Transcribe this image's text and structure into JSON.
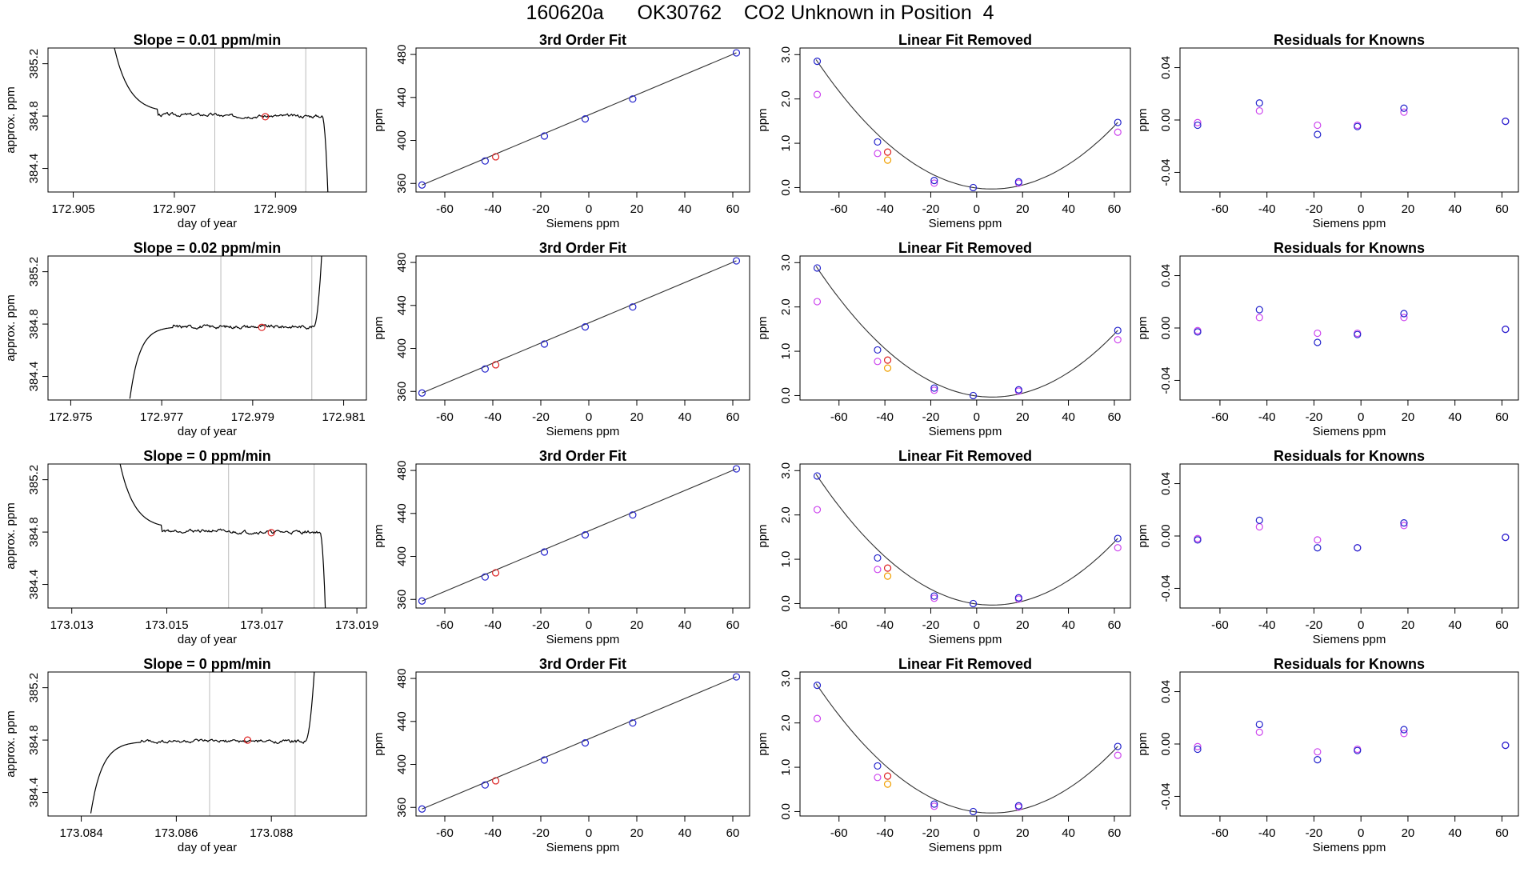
{
  "figure_title": "160620a      OK30762    CO2 Unknown in Position  4",
  "colors": {
    "trace": "#000000",
    "fit_line": "#333333",
    "gray_line": "#bbbbbb",
    "standard_point": "#2222cc",
    "unknown_point": "#dd2222",
    "residual_point": "#cc44ee",
    "orange_point": "#f0a000"
  },
  "chart_data": [
    {
      "type": "line",
      "row": 1,
      "column": 1,
      "title": "Slope =  0.01  ppm/min",
      "xlabel": "day of year",
      "ylabel": "approx. ppm",
      "xlim": [
        172.9045,
        172.9108
      ],
      "ylim": [
        384.22,
        385.32
      ],
      "xticks": [
        172.905,
        172.907,
        172.909
      ],
      "xtick_labels": [
        "172.905",
        "172.907",
        "172.909"
      ],
      "yticks": [
        384.4,
        384.8,
        385.2
      ],
      "ytick_labels": [
        "384.4",
        "384.8",
        "385.2"
      ],
      "window_markers": [
        172.9078,
        172.9096
      ],
      "marker_point": [
        172.9088,
        384.795
      ],
      "trace_shape": "drop_then_plateau_then_fall",
      "trace_start": 172.9057,
      "trace_end": 172.9101,
      "plateau_value": 384.8
    },
    {
      "type": "scatter",
      "row": 1,
      "column": 2,
      "title": "3rd Order Fit",
      "xlabel": "Siemens ppm",
      "ylabel": "ppm",
      "xlim": [
        -72,
        67
      ],
      "ylim": [
        352,
        486
      ],
      "xticks": [
        -60,
        -40,
        -20,
        0,
        20,
        40,
        60
      ],
      "xtick_labels": [
        "-60",
        "-40",
        "-20",
        "0",
        "20",
        "40",
        "60"
      ],
      "yticks": [
        360,
        400,
        440,
        480
      ],
      "ytick_labels": [
        "360",
        "400",
        "440",
        "480"
      ],
      "fit_line": [
        [
          -69.5,
          358.5
        ],
        [
          61.5,
          481.5
        ]
      ],
      "standards": {
        "x": [
          -69.5,
          -43.2,
          -18.5,
          -1.5,
          18.3,
          61.5
        ],
        "y": [
          358.5,
          380.9,
          404.1,
          420.0,
          438.6,
          481.5
        ]
      },
      "unknown": {
        "x": [
          -38.8
        ],
        "y": [
          384.8
        ]
      }
    },
    {
      "type": "scatter",
      "row": 1,
      "column": 3,
      "title": "Linear Fit Removed",
      "xlabel": "Siemens ppm",
      "ylabel": "ppm",
      "xlim": [
        -77,
        67
      ],
      "ylim": [
        -0.1,
        3.15
      ],
      "xticks": [
        -60,
        -40,
        -20,
        0,
        20,
        40,
        60
      ],
      "xtick_labels": [
        "-60",
        "-40",
        "-20",
        "0",
        "20",
        "40",
        "60"
      ],
      "yticks": [
        0,
        1,
        2,
        3
      ],
      "ytick_labels": [
        "0.0",
        "1.0",
        "2.0",
        "3.0"
      ],
      "curve_x_range": [
        -70,
        61.5
      ],
      "blue": {
        "x": [
          -69.5,
          -43.2,
          -18.5,
          -1.5,
          18.3,
          61.5
        ],
        "y": [
          2.85,
          1.03,
          0.16,
          0.0,
          0.13,
          1.47
        ]
      },
      "magenta": {
        "x": [
          -69.5,
          -43.2,
          -18.5,
          18.3,
          61.5
        ],
        "y": [
          2.1,
          0.77,
          0.1,
          0.1,
          1.25
        ]
      },
      "orange": {
        "x": [
          -38.8
        ],
        "y": [
          0.62
        ]
      },
      "red": {
        "x": [
          -38.8
        ],
        "y": [
          0.8
        ]
      }
    },
    {
      "type": "scatter",
      "row": 1,
      "column": 4,
      "title": "Residuals for Knowns",
      "xlabel": "Siemens ppm",
      "ylabel": "ppm",
      "xlim": [
        -77,
        67
      ],
      "ylim": [
        -0.055,
        0.055
      ],
      "xticks": [
        -60,
        -40,
        -20,
        0,
        20,
        40,
        60
      ],
      "xtick_labels": [
        "-60",
        "-40",
        "-20",
        "0",
        "20",
        "40",
        "60"
      ],
      "yticks": [
        -0.04,
        0.0,
        0.04
      ],
      "ytick_labels": [
        "-0.04",
        "0.00",
        "0.04"
      ],
      "blue": {
        "x": [
          -69.5,
          -43.2,
          -18.5,
          -1.5,
          18.3,
          61.5
        ],
        "y": [
          -0.004,
          0.013,
          -0.011,
          -0.005,
          0.009,
          -0.001
        ]
      },
      "magenta": {
        "x": [
          -69.5,
          -43.2,
          -18.5,
          -1.5,
          18.3,
          61.5
        ],
        "y": [
          -0.002,
          0.007,
          -0.004,
          -0.004,
          0.006,
          -0.001
        ]
      }
    },
    {
      "type": "line",
      "row": 2,
      "column": 1,
      "title": "Slope =  0.02  ppm/min",
      "xlabel": "day of year",
      "ylabel": "approx. ppm",
      "xlim": [
        172.9745,
        172.9815
      ],
      "ylim": [
        384.22,
        385.32
      ],
      "xticks": [
        172.975,
        172.977,
        172.979,
        172.981
      ],
      "xtick_labels": [
        "172.975",
        "172.977",
        "172.979",
        "172.981"
      ],
      "yticks": [
        384.4,
        384.8,
        385.2
      ],
      "ytick_labels": [
        "384.4",
        "384.8",
        "385.2"
      ],
      "window_markers": [
        172.9783,
        172.9803
      ],
      "marker_point": [
        172.9792,
        384.775
      ],
      "trace_shape": "rise_then_plateau_then_rise",
      "trace_start": 172.9763,
      "trace_end": 172.9806,
      "plateau_value": 384.78
    },
    {
      "type": "scatter",
      "row": 2,
      "column": 2,
      "title": "3rd Order Fit",
      "xlabel": "Siemens ppm",
      "ylabel": "ppm",
      "xlim": [
        -72,
        67
      ],
      "ylim": [
        352,
        486
      ],
      "xticks": [
        -60,
        -40,
        -20,
        0,
        20,
        40,
        60
      ],
      "xtick_labels": [
        "-60",
        "-40",
        "-20",
        "0",
        "20",
        "40",
        "60"
      ],
      "yticks": [
        360,
        400,
        440,
        480
      ],
      "ytick_labels": [
        "360",
        "400",
        "440",
        "480"
      ],
      "fit_line": [
        [
          -69.5,
          358.5
        ],
        [
          61.5,
          481.5
        ]
      ],
      "standards": {
        "x": [
          -69.5,
          -43.2,
          -18.5,
          -1.5,
          18.3,
          61.5
        ],
        "y": [
          358.5,
          380.9,
          404.1,
          420.0,
          438.6,
          481.5
        ]
      },
      "unknown": {
        "x": [
          -38.8
        ],
        "y": [
          384.8
        ]
      }
    },
    {
      "type": "scatter",
      "row": 2,
      "column": 3,
      "title": "Linear Fit Removed",
      "xlabel": "Siemens ppm",
      "ylabel": "ppm",
      "xlim": [
        -77,
        67
      ],
      "ylim": [
        -0.1,
        3.15
      ],
      "xticks": [
        -60,
        -40,
        -20,
        0,
        20,
        40,
        60
      ],
      "xtick_labels": [
        "-60",
        "-40",
        "-20",
        "0",
        "20",
        "40",
        "60"
      ],
      "yticks": [
        0,
        1,
        2,
        3
      ],
      "ytick_labels": [
        "0.0",
        "1.0",
        "2.0",
        "3.0"
      ],
      "curve_x_range": [
        -70,
        61.5
      ],
      "blue": {
        "x": [
          -69.5,
          -43.2,
          -18.5,
          -1.5,
          18.3,
          61.5
        ],
        "y": [
          2.88,
          1.03,
          0.17,
          0.0,
          0.13,
          1.47
        ]
      },
      "magenta": {
        "x": [
          -69.5,
          -43.2,
          -18.5,
          18.3,
          61.5
        ],
        "y": [
          2.12,
          0.77,
          0.12,
          0.1,
          1.26
        ]
      },
      "orange": {
        "x": [
          -38.8
        ],
        "y": [
          0.62
        ]
      },
      "red": {
        "x": [
          -38.8
        ],
        "y": [
          0.8
        ]
      }
    },
    {
      "type": "scatter",
      "row": 2,
      "column": 4,
      "title": "Residuals for Knowns",
      "xlabel": "Siemens ppm",
      "ylabel": "ppm",
      "xlim": [
        -77,
        67
      ],
      "ylim": [
        -0.055,
        0.055
      ],
      "xticks": [
        -60,
        -40,
        -20,
        0,
        20,
        40,
        60
      ],
      "xtick_labels": [
        "-60",
        "-40",
        "-20",
        "0",
        "20",
        "40",
        "60"
      ],
      "yticks": [
        -0.04,
        0.0,
        0.04
      ],
      "ytick_labels": [
        "-0.04",
        "0.00",
        "0.04"
      ],
      "blue": {
        "x": [
          -69.5,
          -43.2,
          -18.5,
          -1.5,
          18.3,
          61.5
        ],
        "y": [
          -0.003,
          0.014,
          -0.011,
          -0.005,
          0.011,
          -0.001
        ]
      },
      "magenta": {
        "x": [
          -69.5,
          -43.2,
          -18.5,
          -1.5,
          18.3,
          61.5
        ],
        "y": [
          -0.002,
          0.008,
          -0.004,
          -0.004,
          0.008,
          -0.001
        ]
      }
    },
    {
      "type": "line",
      "row": 3,
      "column": 1,
      "title": "Slope =  0  ppm/min",
      "xlabel": "day of year",
      "ylabel": "approx. ppm",
      "xlim": [
        173.0125,
        173.0192
      ],
      "ylim": [
        384.22,
        385.32
      ],
      "xticks": [
        173.013,
        173.015,
        173.017,
        173.019
      ],
      "xtick_labels": [
        "173.013",
        "173.015",
        "173.017",
        "173.019"
      ],
      "yticks": [
        384.4,
        384.8,
        385.2
      ],
      "ytick_labels": [
        "384.4",
        "384.8",
        "385.2"
      ],
      "window_markers": [
        173.0163,
        173.0181
      ],
      "marker_point": [
        173.0172,
        384.795
      ],
      "trace_shape": "drop_then_plateau_then_fall",
      "trace_start": 173.0139,
      "trace_end": 173.0184,
      "plateau_value": 384.8
    },
    {
      "type": "scatter",
      "row": 3,
      "column": 2,
      "title": "3rd Order Fit",
      "xlabel": "Siemens ppm",
      "ylabel": "ppm",
      "xlim": [
        -72,
        67
      ],
      "ylim": [
        352,
        486
      ],
      "xticks": [
        -60,
        -40,
        -20,
        0,
        20,
        40,
        60
      ],
      "xtick_labels": [
        "-60",
        "-40",
        "-20",
        "0",
        "20",
        "40",
        "60"
      ],
      "yticks": [
        360,
        400,
        440,
        480
      ],
      "ytick_labels": [
        "360",
        "400",
        "440",
        "480"
      ],
      "fit_line": [
        [
          -69.5,
          358.5
        ],
        [
          61.5,
          481.5
        ]
      ],
      "standards": {
        "x": [
          -69.5,
          -43.2,
          -18.5,
          -1.5,
          18.3,
          61.5
        ],
        "y": [
          358.5,
          380.9,
          404.1,
          420.0,
          438.6,
          481.5
        ]
      },
      "unknown": {
        "x": [
          -38.8
        ],
        "y": [
          384.8
        ]
      }
    },
    {
      "type": "scatter",
      "row": 3,
      "column": 3,
      "title": "Linear Fit Removed",
      "xlabel": "Siemens ppm",
      "ylabel": "ppm",
      "xlim": [
        -77,
        67
      ],
      "ylim": [
        -0.1,
        3.15
      ],
      "xticks": [
        -60,
        -40,
        -20,
        0,
        20,
        40,
        60
      ],
      "xtick_labels": [
        "-60",
        "-40",
        "-20",
        "0",
        "20",
        "40",
        "60"
      ],
      "yticks": [
        0,
        1,
        2,
        3
      ],
      "ytick_labels": [
        "0.0",
        "1.0",
        "2.0",
        "3.0"
      ],
      "curve_x_range": [
        -70,
        61.5
      ],
      "blue": {
        "x": [
          -69.5,
          -43.2,
          -18.5,
          -1.5,
          18.3,
          61.5
        ],
        "y": [
          2.88,
          1.03,
          0.17,
          0.0,
          0.13,
          1.47
        ]
      },
      "magenta": {
        "x": [
          -69.5,
          -43.2,
          -18.5,
          18.3,
          61.5
        ],
        "y": [
          2.12,
          0.77,
          0.12,
          0.1,
          1.26
        ]
      },
      "orange": {
        "x": [
          -38.8
        ],
        "y": [
          0.62
        ]
      },
      "red": {
        "x": [
          -38.8
        ],
        "y": [
          0.8
        ]
      }
    },
    {
      "type": "scatter",
      "row": 3,
      "column": 4,
      "title": "Residuals for Knowns",
      "xlabel": "Siemens ppm",
      "ylabel": "ppm",
      "xlim": [
        -77,
        67
      ],
      "ylim": [
        -0.055,
        0.055
      ],
      "xticks": [
        -60,
        -40,
        -20,
        0,
        20,
        40,
        60
      ],
      "xtick_labels": [
        "-60",
        "-40",
        "-20",
        "0",
        "20",
        "40",
        "60"
      ],
      "yticks": [
        -0.04,
        0.0,
        0.04
      ],
      "ytick_labels": [
        "-0.04",
        "0.00",
        "0.04"
      ],
      "blue": {
        "x": [
          -69.5,
          -43.2,
          -18.5,
          -1.5,
          18.3,
          61.5
        ],
        "y": [
          -0.003,
          0.012,
          -0.009,
          -0.009,
          0.01,
          -0.001
        ]
      },
      "magenta": {
        "x": [
          -69.5,
          -43.2,
          -18.5,
          -1.5,
          18.3,
          61.5
        ],
        "y": [
          -0.002,
          0.007,
          -0.003,
          -0.009,
          0.008,
          -0.001
        ]
      }
    },
    {
      "type": "line",
      "row": 4,
      "column": 1,
      "title": "Slope =  0  ppm/min",
      "xlabel": "day of year",
      "ylabel": "approx. ppm",
      "xlim": [
        173.0833,
        173.09
      ],
      "ylim": [
        384.22,
        385.32
      ],
      "xticks": [
        173.084,
        173.086,
        173.088
      ],
      "xtick_labels": [
        "173.084",
        "173.086",
        "173.088"
      ],
      "yticks": [
        384.4,
        384.8,
        385.2
      ],
      "ytick_labels": [
        "384.4",
        "384.8",
        "385.2"
      ],
      "window_markers": [
        173.0867,
        173.0885
      ],
      "marker_point": [
        173.0875,
        384.8
      ],
      "trace_shape": "rise_then_plateau_then_rise",
      "trace_start": 173.0842,
      "trace_end": 173.089,
      "plateau_value": 384.79
    },
    {
      "type": "scatter",
      "row": 4,
      "column": 2,
      "title": "3rd Order Fit",
      "xlabel": "Siemens ppm",
      "ylabel": "ppm",
      "xlim": [
        -72,
        67
      ],
      "ylim": [
        352,
        486
      ],
      "xticks": [
        -60,
        -40,
        -20,
        0,
        20,
        40,
        60
      ],
      "xtick_labels": [
        "-60",
        "-40",
        "-20",
        "0",
        "20",
        "40",
        "60"
      ],
      "yticks": [
        360,
        400,
        440,
        480
      ],
      "ytick_labels": [
        "360",
        "400",
        "440",
        "480"
      ],
      "fit_line": [
        [
          -69.5,
          358.5
        ],
        [
          61.5,
          481.5
        ]
      ],
      "standards": {
        "x": [
          -69.5,
          -43.2,
          -18.5,
          -1.5,
          18.3,
          61.5
        ],
        "y": [
          358.5,
          380.9,
          404.1,
          420.0,
          438.6,
          481.5
        ]
      },
      "unknown": {
        "x": [
          -38.8
        ],
        "y": [
          384.8
        ]
      }
    },
    {
      "type": "scatter",
      "row": 4,
      "column": 3,
      "title": "Linear Fit Removed",
      "xlabel": "Siemens ppm",
      "ylabel": "ppm",
      "xlim": [
        -77,
        67
      ],
      "ylim": [
        -0.1,
        3.15
      ],
      "xticks": [
        -60,
        -40,
        -20,
        0,
        20,
        40,
        60
      ],
      "xtick_labels": [
        "-60",
        "-40",
        "-20",
        "0",
        "20",
        "40",
        "60"
      ],
      "yticks": [
        0,
        1,
        2,
        3
      ],
      "ytick_labels": [
        "0.0",
        "1.0",
        "2.0",
        "3.0"
      ],
      "curve_x_range": [
        -70,
        61.5
      ],
      "blue": {
        "x": [
          -69.5,
          -43.2,
          -18.5,
          -1.5,
          18.3,
          61.5
        ],
        "y": [
          2.85,
          1.03,
          0.17,
          0.0,
          0.13,
          1.47
        ]
      },
      "magenta": {
        "x": [
          -69.5,
          -43.2,
          -18.5,
          18.3,
          61.5
        ],
        "y": [
          2.1,
          0.77,
          0.12,
          0.1,
          1.27
        ]
      },
      "orange": {
        "x": [
          -38.8
        ],
        "y": [
          0.62
        ]
      },
      "red": {
        "x": [
          -38.8
        ],
        "y": [
          0.8
        ]
      }
    },
    {
      "type": "scatter",
      "row": 4,
      "column": 4,
      "title": "Residuals for Knowns",
      "xlabel": "Siemens ppm",
      "ylabel": "ppm",
      "xlim": [
        -77,
        67
      ],
      "ylim": [
        -0.055,
        0.055
      ],
      "xticks": [
        -60,
        -40,
        -20,
        0,
        20,
        40,
        60
      ],
      "xtick_labels": [
        "-60",
        "-40",
        "-20",
        "0",
        "20",
        "40",
        "60"
      ],
      "yticks": [
        -0.04,
        0.0,
        0.04
      ],
      "ytick_labels": [
        "-0.04",
        "0.00",
        "0.04"
      ],
      "blue": {
        "x": [
          -69.5,
          -43.2,
          -18.5,
          -1.5,
          18.3,
          61.5
        ],
        "y": [
          -0.004,
          0.015,
          -0.012,
          -0.005,
          0.011,
          -0.001
        ]
      },
      "magenta": {
        "x": [
          -69.5,
          -43.2,
          -18.5,
          -1.5,
          18.3,
          61.5
        ],
        "y": [
          -0.002,
          0.009,
          -0.006,
          -0.004,
          0.008,
          -0.001
        ]
      }
    }
  ]
}
